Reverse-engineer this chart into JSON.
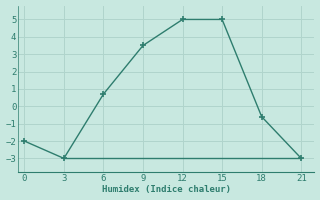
{
  "xlabel": "Humidex (Indice chaleur)",
  "line1_x": [
    0,
    3,
    6,
    9,
    12,
    15,
    18,
    21
  ],
  "line1_y": [
    -2,
    -3,
    0.7,
    3.5,
    5,
    5,
    -0.6,
    -3
  ],
  "line2_x": [
    3,
    12,
    15,
    21
  ],
  "line2_y": [
    -3,
    -3,
    -3,
    -3
  ],
  "line_color": "#2e7d6e",
  "bg_color": "#c8e8e0",
  "grid_color": "#b0d4cc",
  "xlim": [
    -0.5,
    22
  ],
  "ylim": [
    -3.8,
    5.8
  ],
  "xticks": [
    0,
    3,
    6,
    9,
    12,
    15,
    18,
    21
  ],
  "yticks": [
    -3,
    -2,
    -1,
    0,
    1,
    2,
    3,
    4,
    5
  ],
  "marker": "+"
}
